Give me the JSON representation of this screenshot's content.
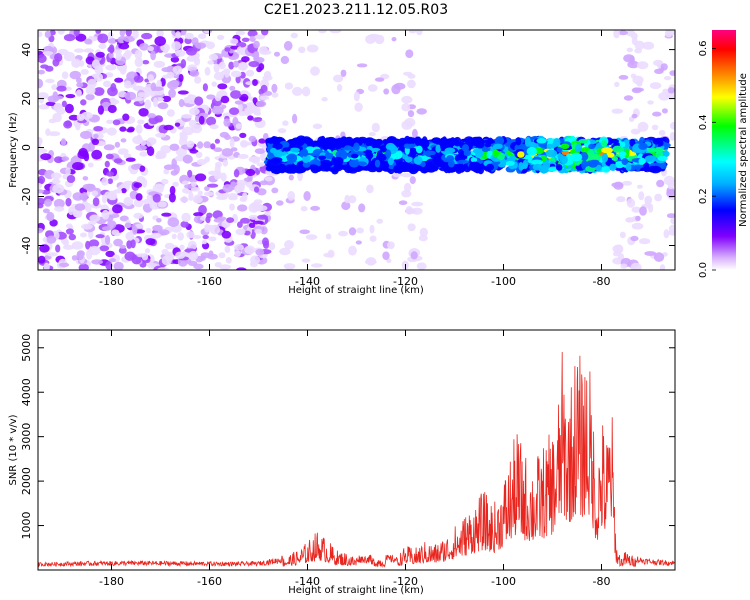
{
  "figure": {
    "title": "C2E1.2023.211.12.05.R03"
  },
  "chart_data": [
    {
      "type": "heatmap",
      "title": "C2E1.2023.211.12.05.R03",
      "xlabel": "Height of straight line (km)",
      "ylabel": "Frequency (Hz)",
      "xlim": [
        -195,
        -65
      ],
      "ylim": [
        -50,
        48
      ],
      "x_ticks": [
        -180,
        -160,
        -140,
        -120,
        -100,
        -80
      ],
      "y_ticks": [
        -40,
        -20,
        0,
        20,
        40
      ],
      "colorbar": {
        "label": "Normalized spectral amplitude",
        "range": [
          0.0,
          0.65
        ],
        "ticks": [
          0.0,
          0.2,
          0.4,
          0.6
        ],
        "colormap": [
          "#ffffff",
          "#d9b3ff",
          "#8000ff",
          "#0000ff",
          "#00ffff",
          "#00ff00",
          "#ffff00",
          "#ff8000",
          "#ff0000",
          "#ff00a0"
        ]
      },
      "band": {
        "x_range": [
          -148,
          -67
        ],
        "center_hz": -3,
        "half_width_hz": 6,
        "peak_x": -85
      },
      "noise_regions": [
        {
          "x_range": [
            -195,
            -148
          ],
          "level": "dense"
        },
        {
          "x_range": [
            -148,
            -120
          ],
          "level": "sparse"
        },
        {
          "x_range": [
            -120,
            -116
          ],
          "level": "column"
        },
        {
          "x_range": [
            -77,
            -65
          ],
          "level": "column"
        }
      ]
    },
    {
      "type": "line",
      "xlabel": "Height of straight line (km)",
      "ylabel": "SNR (10 * v/v)",
      "xlim": [
        -195,
        -65
      ],
      "ylim": [
        0,
        5400
      ],
      "x_ticks": [
        -180,
        -160,
        -140,
        -120,
        -100,
        -80
      ],
      "y_ticks": [
        1000,
        2000,
        3000,
        4000,
        5000
      ],
      "line_color": "#e8261f",
      "x": [
        -195,
        -185,
        -175,
        -165,
        -155,
        -150,
        -146,
        -142,
        -140,
        -138,
        -136,
        -134,
        -132,
        -130,
        -128,
        -126,
        -124,
        -122,
        -120,
        -118,
        -116,
        -114,
        -112,
        -110,
        -108,
        -106,
        -104,
        -102,
        -100,
        -98,
        -97,
        -96,
        -94,
        -92,
        -90,
        -89,
        -88,
        -87,
        -86,
        -85,
        -84,
        -83,
        -82,
        -81,
        -80,
        -79,
        -78,
        -77,
        -76,
        -75,
        -74,
        -72,
        -70,
        -68,
        -66,
        -65
      ],
      "y": [
        150,
        170,
        180,
        170,
        160,
        170,
        250,
        450,
        650,
        900,
        700,
        450,
        400,
        300,
        280,
        320,
        300,
        280,
        550,
        500,
        650,
        600,
        750,
        1000,
        1250,
        1550,
        1800,
        1500,
        2100,
        2900,
        3250,
        2700,
        2500,
        2800,
        3200,
        3700,
        5000,
        4200,
        4400,
        5300,
        4600,
        5250,
        4200,
        2400,
        3600,
        3000,
        4200,
        600,
        300,
        450,
        350,
        250,
        220,
        200,
        190,
        180
      ]
    }
  ]
}
